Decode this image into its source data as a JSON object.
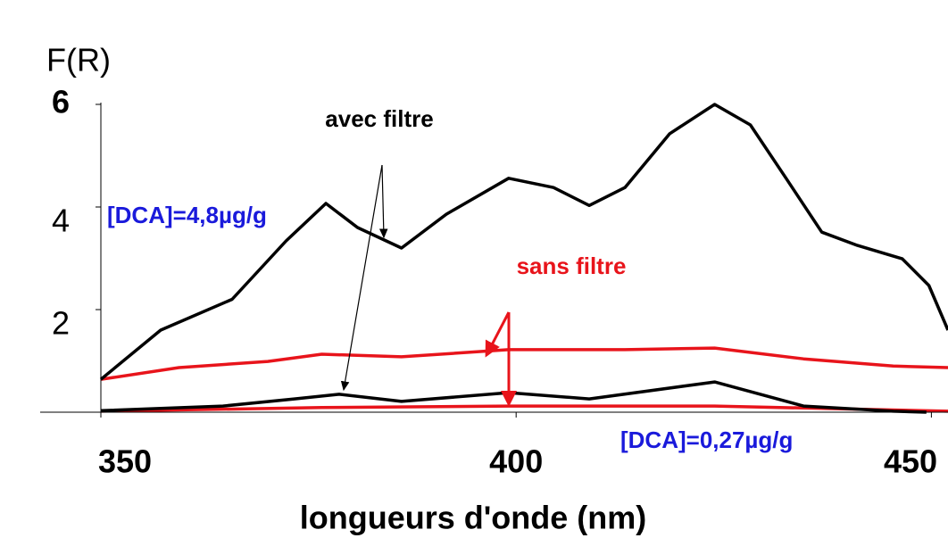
{
  "chart_data": {
    "type": "line",
    "y_label": "F(R)",
    "x_label": "longueurs d'onde (nm)",
    "annotations": [
      "avec filtre",
      "sans filtre",
      "[DCA]=4,8µg/g",
      "[DCA]=0,27µg/g"
    ],
    "xlim": [
      350,
      452
    ],
    "xticks": [
      350,
      400,
      450
    ],
    "ylim": [
      0,
      6
    ],
    "yticks": [
      2,
      4,
      6
    ],
    "grid": false,
    "series": [
      {
        "color": "#000000",
        "x": [
          350,
          357.2,
          365.8,
          372.3,
          377.1,
          380.9,
          386.2,
          391.6,
          399.1,
          404.5,
          408.8,
          413.1,
          418.5,
          423.9,
          428.2,
          432.5,
          436.8,
          441.1,
          446.5,
          449.7,
          452
        ],
        "values": [
          0.64,
          1.6,
          2.2,
          3.34,
          4.07,
          3.6,
          3.2,
          3.86,
          4.56,
          4.38,
          4.03,
          4.38,
          5.43,
          6.0,
          5.6,
          4.56,
          3.51,
          3.25,
          2.99,
          2.47,
          1.6
        ]
      },
      {
        "color": "#e8141b",
        "x": [
          350,
          359.4,
          370.1,
          376.6,
          386.2,
          399.1,
          413.1,
          423.9,
          434.6,
          445.4,
          452
        ],
        "values": [
          0.64,
          0.87,
          0.99,
          1.13,
          1.08,
          1.22,
          1.22,
          1.25,
          1.04,
          0.9,
          0.87
        ]
      },
      {
        "color": "#000000",
        "x": [
          350,
          364.7,
          373.3,
          378.7,
          386.2,
          399.1,
          408.8,
          423.9,
          434.6,
          445.4,
          449.4
        ],
        "values": [
          0.03,
          0.12,
          0.26,
          0.35,
          0.21,
          0.38,
          0.26,
          0.59,
          0.12,
          0.02,
          0
        ]
      },
      {
        "color": "#e8141b",
        "x": [
          350,
          376.6,
          399.1,
          423.9,
          452
        ],
        "values": [
          0.02,
          0.09,
          0.12,
          0.12,
          0.02
        ]
      }
    ]
  }
}
